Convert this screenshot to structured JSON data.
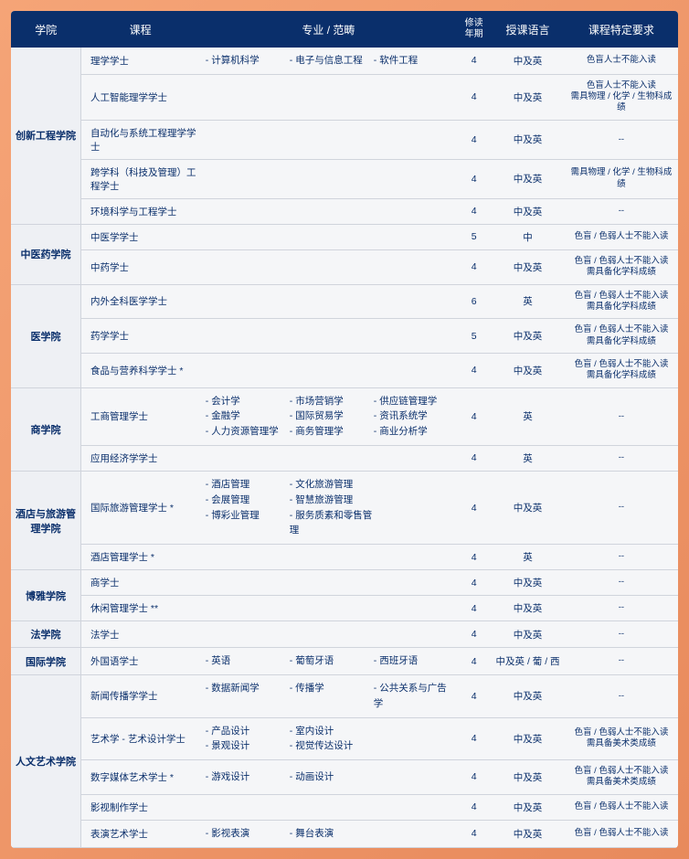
{
  "headers": {
    "college": "学院",
    "course": "课程",
    "major": "专业 / 范畴",
    "year": "修读\n年期",
    "lang": "授课语言",
    "req": "课程特定要求"
  },
  "groups": [
    {
      "college": "创新工程学院",
      "rows": [
        {
          "course": "理学学士",
          "majors": [
            [
              "- 计算机科学"
            ],
            [
              "- 电子与信息工程"
            ],
            [
              "- 软件工程"
            ]
          ],
          "year": "4",
          "lang": "中及英",
          "req": "色盲人士不能入读"
        },
        {
          "course": "人工智能理学学士",
          "majors": [],
          "year": "4",
          "lang": "中及英",
          "req": "色盲人士不能入读\n需具物理 / 化学 / 生物科成绩"
        },
        {
          "course": "自动化与系统工程理学学士",
          "majors": [],
          "year": "4",
          "lang": "中及英",
          "req": "--"
        },
        {
          "course": "跨学科（科技及管理）工程学士",
          "majors": [],
          "year": "4",
          "lang": "中及英",
          "req": "需具物理 / 化学 / 生物科成绩"
        },
        {
          "course": "环境科学与工程学士",
          "majors": [],
          "year": "4",
          "lang": "中及英",
          "req": "--"
        }
      ]
    },
    {
      "college": "中医药学院",
      "rows": [
        {
          "course": "中医学学士",
          "majors": [],
          "year": "5",
          "lang": "中",
          "req": "色盲 / 色弱人士不能入读"
        },
        {
          "course": "中药学士",
          "majors": [],
          "year": "4",
          "lang": "中及英",
          "req": "色盲 / 色弱人士不能入读\n需具备化学科成绩"
        }
      ]
    },
    {
      "college": "医学院",
      "rows": [
        {
          "course": "内外全科医学学士",
          "majors": [],
          "year": "6",
          "lang": "英",
          "req": "色盲 / 色弱人士不能入读\n需具备化学科成绩"
        },
        {
          "course": "药学学士",
          "majors": [],
          "year": "5",
          "lang": "中及英",
          "req": "色盲 / 色弱人士不能入读\n需具备化学科成绩"
        },
        {
          "course": "食品与营养科学学士 *",
          "majors": [],
          "year": "4",
          "lang": "中及英",
          "req": "色盲 / 色弱人士不能入读\n需具备化学科成绩"
        }
      ]
    },
    {
      "college": "商学院",
      "rows": [
        {
          "course": "工商管理学士",
          "majors": [
            [
              "- 会计学",
              "- 金融学",
              "- 人力资源管理学"
            ],
            [
              "- 市场营销学",
              "- 国际贸易学",
              "- 商务管理学"
            ],
            [
              "- 供应链管理学",
              "- 资讯系统学",
              "- 商业分析学"
            ]
          ],
          "year": "4",
          "lang": "英",
          "req": "--"
        },
        {
          "course": "应用经济学学士",
          "majors": [],
          "year": "4",
          "lang": "英",
          "req": "--"
        }
      ]
    },
    {
      "college": "酒店与旅游管理学院",
      "rows": [
        {
          "course": "国际旅游管理学士 *",
          "majors": [
            [
              "- 酒店管理",
              "- 会展管理",
              "- 博彩业管理"
            ],
            [
              "- 文化旅游管理",
              "- 智慧旅游管理",
              "- 服务质素和零售管理"
            ],
            []
          ],
          "year": "4",
          "lang": "中及英",
          "req": "--"
        },
        {
          "course": "酒店管理学士 *",
          "majors": [],
          "year": "4",
          "lang": "英",
          "req": "--"
        }
      ]
    },
    {
      "college": "博雅学院",
      "rows": [
        {
          "course": "商学士",
          "majors": [],
          "year": "4",
          "lang": "中及英",
          "req": "--"
        },
        {
          "course": "休闲管理学士 **",
          "majors": [],
          "year": "4",
          "lang": "中及英",
          "req": "--"
        }
      ]
    },
    {
      "college": "法学院",
      "rows": [
        {
          "course": "法学士",
          "majors": [],
          "year": "4",
          "lang": "中及英",
          "req": "--"
        }
      ]
    },
    {
      "college": "国际学院",
      "rows": [
        {
          "course": "外国语学士",
          "majors": [
            [
              "- 英语"
            ],
            [
              "- 葡萄牙语"
            ],
            [
              "- 西班牙语"
            ]
          ],
          "year": "4",
          "lang": "中及英 / 葡 / 西",
          "req": "--"
        }
      ]
    },
    {
      "college": "人文艺术学院",
      "rows": [
        {
          "course": "新闻传播学学士",
          "majors": [
            [
              "- 数据新闻学"
            ],
            [
              "- 传播学"
            ],
            [
              "- 公共关系与广告学"
            ]
          ],
          "year": "4",
          "lang": "中及英",
          "req": "--"
        },
        {
          "course": "艺术学 - 艺术设计学士",
          "majors": [
            [
              "- 产品设计",
              "- 景观设计"
            ],
            [
              "- 室内设计",
              "- 视觉传达设计"
            ],
            []
          ],
          "year": "4",
          "lang": "中及英",
          "req": "色盲 / 色弱人士不能入读\n需具备美术类成绩"
        },
        {
          "course": "数字媒体艺术学士 *",
          "majors": [
            [
              "- 游戏设计"
            ],
            [
              "- 动画设计"
            ],
            []
          ],
          "year": "4",
          "lang": "中及英",
          "req": "色盲 / 色弱人士不能入读\n需具备美术类成绩"
        },
        {
          "course": "影视制作学士",
          "majors": [],
          "year": "4",
          "lang": "中及英",
          "req": "色盲 / 色弱人士不能入读"
        },
        {
          "course": "表演艺术学士",
          "majors": [
            [
              "- 影视表演"
            ],
            [
              "- 舞台表演"
            ],
            []
          ],
          "year": "4",
          "lang": "中及英",
          "req": "色盲 / 色弱人士不能入读"
        }
      ]
    }
  ]
}
